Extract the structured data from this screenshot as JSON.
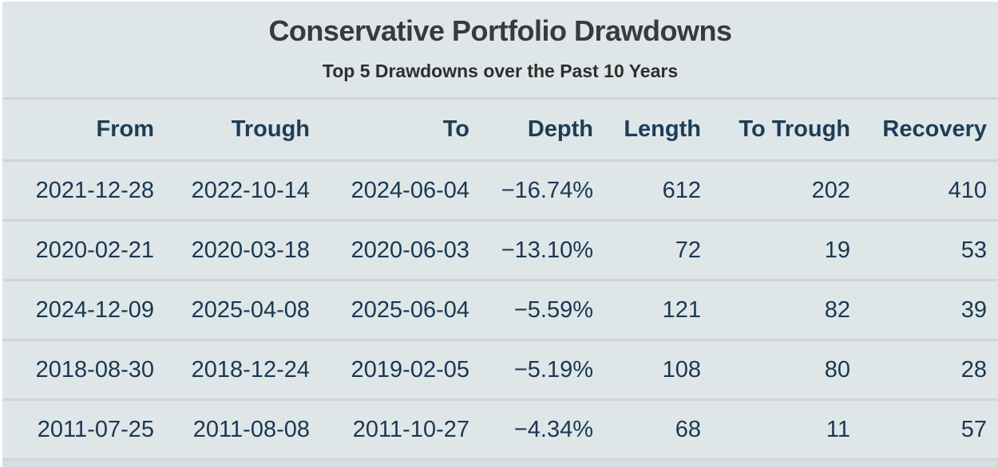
{
  "colors": {
    "background": "#dee6e8",
    "outer_border": "#ffffff",
    "divider": "#d4d4d4",
    "title_text": "#3a3a3a",
    "header_text": "#1d3d57",
    "cell_text": "#1a3752",
    "bottom_strip": "#d3dfe0"
  },
  "chart_data": {
    "type": "table",
    "title": "Conservative Portfolio Drawdowns",
    "subtitle": "Top 5 Drawdowns over the Past 10 Years",
    "columns": [
      "From",
      "Trough",
      "To",
      "Depth",
      "Length",
      "To Trough",
      "Recovery"
    ],
    "rows": [
      [
        "2021-12-28",
        "2022-10-14",
        "2024-06-04",
        "−16.74%",
        "612",
        "202",
        "410"
      ],
      [
        "2020-02-21",
        "2020-03-18",
        "2020-06-03",
        "−13.10%",
        "72",
        "19",
        "53"
      ],
      [
        "2024-12-09",
        "2025-04-08",
        "2025-06-04",
        "−5.59%",
        "121",
        "82",
        "39"
      ],
      [
        "2018-08-30",
        "2018-12-24",
        "2019-02-05",
        "−5.19%",
        "108",
        "80",
        "28"
      ],
      [
        "2011-07-25",
        "2011-08-08",
        "2011-10-27",
        "−4.34%",
        "68",
        "11",
        "57"
      ]
    ],
    "numeric": {
      "depth_pct": [
        -16.74,
        -13.1,
        -5.59,
        -5.19,
        -4.34
      ],
      "length_days": [
        612,
        72,
        121,
        108,
        68
      ],
      "to_trough_days": [
        202,
        19,
        82,
        80,
        11
      ],
      "recovery_days": [
        410,
        53,
        39,
        28,
        57
      ]
    },
    "layout": {
      "column_alignment": "right",
      "grid": "horizontal-dividers-only"
    }
  }
}
